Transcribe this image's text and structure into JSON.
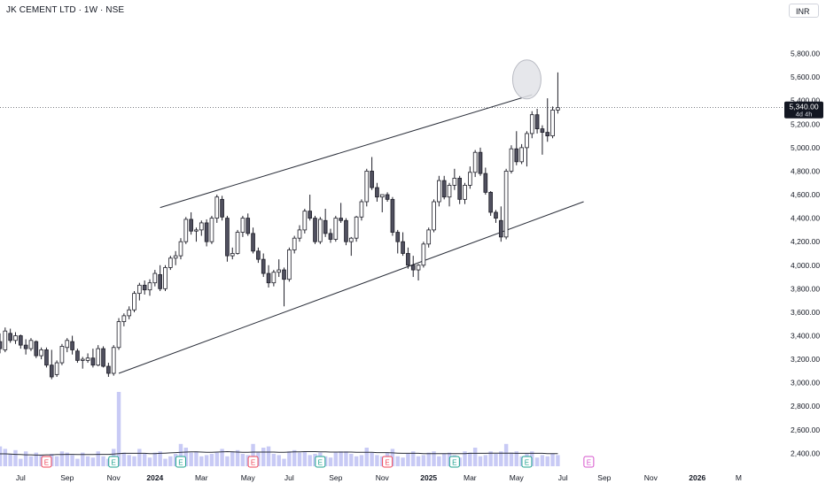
{
  "header": {
    "title": "JK CEMENT LTD · 1W · NSE",
    "currency": "INR"
  },
  "price_tag": {
    "price": "5,340.00",
    "countdown": "4d 4h"
  },
  "colors": {
    "bull_body": "#ffffff",
    "bear_body": "#50505f",
    "candle_outline": "#1e1e28",
    "volume": "#c8caf5",
    "volume_ma": "#2a2e39",
    "channel": "#2a2e39",
    "circle_fill": "#e2e3e8",
    "earnings_red": "#f0465a",
    "earnings_green": "#1fa38f",
    "earnings_magenta": "#d654cc",
    "axis_text": "#131722"
  },
  "chart_data": {
    "type": "candlestick",
    "title": "JK CEMENT LTD · 1W · NSE",
    "currency": "INR",
    "ylim": [
      2320,
      6000
    ],
    "y_ticks": [
      2400,
      2600,
      2800,
      3000,
      3200,
      3400,
      3600,
      3800,
      4000,
      4200,
      4400,
      4600,
      4800,
      5000,
      5200,
      5400,
      5600,
      5800
    ],
    "y_tick_labels": [
      "2,400.00",
      "2,600.00",
      "2,800.00",
      "3,000.00",
      "3,200.00",
      "3,400.00",
      "3,600.00",
      "3,800.00",
      "4,000.00",
      "4,200.00",
      "4,400.00",
      "4,600.00",
      "4,800.00",
      "5,000.00",
      "5,200.00",
      "5,400.00",
      "5,600.00",
      "5,800.00"
    ],
    "x_start": "2023-06-05",
    "x_end": "2026-04-27",
    "x_ticks": [
      {
        "date": "2023-07-03",
        "label": "Jul"
      },
      {
        "date": "2023-09-04",
        "label": "Sep"
      },
      {
        "date": "2023-11-06",
        "label": "Nov"
      },
      {
        "date": "2024-01-01",
        "label": "2024"
      },
      {
        "date": "2024-03-04",
        "label": "Mar"
      },
      {
        "date": "2024-05-06",
        "label": "May"
      },
      {
        "date": "2024-07-01",
        "label": "Jul"
      },
      {
        "date": "2024-09-02",
        "label": "Sep"
      },
      {
        "date": "2024-11-04",
        "label": "Nov"
      },
      {
        "date": "2025-01-06",
        "label": "2025"
      },
      {
        "date": "2025-03-03",
        "label": "Mar"
      },
      {
        "date": "2025-05-05",
        "label": "May"
      },
      {
        "date": "2025-07-07",
        "label": "Jul"
      },
      {
        "date": "2025-09-01",
        "label": "Sep"
      },
      {
        "date": "2025-11-03",
        "label": "Nov"
      },
      {
        "date": "2026-01-05",
        "label": "2026"
      },
      {
        "date": "2026-03-02",
        "label": "M"
      }
    ],
    "candles": [
      [
        3350,
        3420,
        3250,
        3290
      ],
      [
        3280,
        3470,
        3260,
        3440
      ],
      [
        3420,
        3460,
        3340,
        3360
      ],
      [
        3360,
        3430,
        3330,
        3400
      ],
      [
        3400,
        3410,
        3290,
        3320
      ],
      [
        3320,
        3370,
        3240,
        3290
      ],
      [
        3290,
        3380,
        3270,
        3360
      ],
      [
        3350,
        3360,
        3210,
        3230
      ],
      [
        3230,
        3300,
        3200,
        3280
      ],
      [
        3280,
        3300,
        3130,
        3150
      ],
      [
        3150,
        3280,
        3030,
        3050
      ],
      [
        3070,
        3190,
        3050,
        3170
      ],
      [
        3170,
        3330,
        3150,
        3310
      ],
      [
        3300,
        3380,
        3260,
        3360
      ],
      [
        3350,
        3400,
        3240,
        3280
      ],
      [
        3270,
        3290,
        3170,
        3190
      ],
      [
        3190,
        3220,
        3120,
        3200
      ],
      [
        3190,
        3250,
        3170,
        3210
      ],
      [
        3210,
        3290,
        3130,
        3150
      ],
      [
        3150,
        3320,
        3140,
        3290
      ],
      [
        3290,
        3310,
        3130,
        3140
      ],
      [
        3140,
        3170,
        3050,
        3080
      ],
      [
        3080,
        3320,
        3060,
        3300
      ],
      [
        3300,
        3550,
        3280,
        3520
      ],
      [
        3520,
        3590,
        3480,
        3570
      ],
      [
        3570,
        3650,
        3540,
        3620
      ],
      [
        3620,
        3780,
        3600,
        3760
      ],
      [
        3760,
        3850,
        3700,
        3830
      ],
      [
        3830,
        3870,
        3750,
        3790
      ],
      [
        3790,
        3880,
        3740,
        3850
      ],
      [
        3850,
        3960,
        3820,
        3930
      ],
      [
        3920,
        4000,
        3780,
        3800
      ],
      [
        3800,
        4000,
        3780,
        3980
      ],
      [
        3980,
        4080,
        3960,
        4060
      ],
      [
        4060,
        4120,
        4000,
        4080
      ],
      [
        4080,
        4230,
        4050,
        4200
      ],
      [
        4200,
        4410,
        4180,
        4390
      ],
      [
        4390,
        4450,
        4260,
        4290
      ],
      [
        4290,
        4320,
        4200,
        4300
      ],
      [
        4300,
        4380,
        4250,
        4360
      ],
      [
        4360,
        4390,
        4160,
        4200
      ],
      [
        4200,
        4420,
        4180,
        4400
      ],
      [
        4400,
        4600,
        4360,
        4580
      ],
      [
        4560,
        4590,
        4380,
        4410
      ],
      [
        4400,
        4420,
        4030,
        4080
      ],
      [
        4080,
        4150,
        4050,
        4100
      ],
      [
        4100,
        4300,
        4090,
        4280
      ],
      [
        4280,
        4420,
        4240,
        4400
      ],
      [
        4400,
        4440,
        4250,
        4270
      ],
      [
        4270,
        4320,
        4100,
        4120
      ],
      [
        4120,
        4150,
        4020,
        4050
      ],
      [
        4050,
        4100,
        3900,
        3930
      ],
      [
        3930,
        4000,
        3810,
        3850
      ],
      [
        3850,
        3960,
        3820,
        3940
      ],
      [
        3940,
        4050,
        3900,
        3960
      ],
      [
        3960,
        3980,
        3650,
        3880
      ],
      [
        3880,
        4150,
        3860,
        4130
      ],
      [
        4130,
        4250,
        4100,
        4230
      ],
      [
        4230,
        4340,
        4200,
        4300
      ],
      [
        4300,
        4480,
        4270,
        4460
      ],
      [
        4460,
        4600,
        4380,
        4400
      ],
      [
        4400,
        4420,
        4180,
        4200
      ],
      [
        4200,
        4410,
        4180,
        4390
      ],
      [
        4380,
        4480,
        4240,
        4270
      ],
      [
        4270,
        4310,
        4190,
        4220
      ],
      [
        4220,
        4420,
        4200,
        4400
      ],
      [
        4400,
        4530,
        4360,
        4380
      ],
      [
        4380,
        4400,
        4170,
        4200
      ],
      [
        4200,
        4240,
        4080,
        4230
      ],
      [
        4230,
        4420,
        4200,
        4410
      ],
      [
        4410,
        4560,
        4380,
        4540
      ],
      [
        4540,
        4820,
        4500,
        4800
      ],
      [
        4800,
        4920,
        4640,
        4660
      ],
      [
        4660,
        4700,
        4540,
        4580
      ],
      [
        4580,
        4600,
        4450,
        4600
      ],
      [
        4600,
        4620,
        4540,
        4560
      ],
      [
        4560,
        4580,
        4250,
        4280
      ],
      [
        4280,
        4300,
        4100,
        4200
      ],
      [
        4200,
        4280,
        4080,
        4100
      ],
      [
        4100,
        4150,
        3970,
        4000
      ],
      [
        4000,
        4080,
        3900,
        3960
      ],
      [
        3960,
        4010,
        3870,
        4000
      ],
      [
        4000,
        4200,
        3980,
        4180
      ],
      [
        4180,
        4320,
        4150,
        4300
      ],
      [
        4300,
        4560,
        4280,
        4540
      ],
      [
        4540,
        4760,
        4500,
        4720
      ],
      [
        4720,
        4760,
        4560,
        4580
      ],
      [
        4580,
        4700,
        4500,
        4680
      ],
      [
        4680,
        4820,
        4640,
        4740
      ],
      [
        4740,
        4760,
        4520,
        4560
      ],
      [
        4560,
        4700,
        4520,
        4680
      ],
      [
        4680,
        4840,
        4650,
        4790
      ],
      [
        4790,
        4980,
        4750,
        4960
      ],
      [
        4960,
        5000,
        4760,
        4780
      ],
      [
        4780,
        4830,
        4600,
        4620
      ],
      [
        4620,
        4630,
        4420,
        4450
      ],
      [
        4450,
        4470,
        4360,
        4400
      ],
      [
        4380,
        4500,
        4200,
        4240
      ],
      [
        4240,
        4820,
        4220,
        4800
      ],
      [
        4800,
        5020,
        4780,
        4990
      ],
      [
        4990,
        5140,
        4850,
        4880
      ],
      [
        4880,
        5030,
        4860,
        5000
      ],
      [
        5000,
        5140,
        4840,
        5120
      ],
      [
        5120,
        5310,
        5080,
        5280
      ],
      [
        5280,
        5330,
        5120,
        5160
      ],
      [
        5160,
        5190,
        4940,
        5130
      ],
      [
        5130,
        5420,
        5050,
        5100
      ],
      [
        5100,
        5350,
        5080,
        5320
      ],
      [
        5320,
        5640,
        5290,
        5340
      ]
    ],
    "volumes": [
      80,
      70,
      50,
      65,
      30,
      60,
      40,
      55,
      45,
      35,
      50,
      40,
      60,
      55,
      45,
      30,
      55,
      40,
      35,
      60,
      40,
      30,
      70,
      300,
      55,
      45,
      40,
      70,
      50,
      35,
      55,
      60,
      30,
      40,
      50,
      90,
      75,
      55,
      60,
      40,
      45,
      50,
      55,
      70,
      40,
      60,
      65,
      50,
      45,
      90,
      55,
      75,
      80,
      50,
      45,
      30,
      60,
      65,
      55,
      60,
      45,
      50,
      55,
      40,
      35,
      55,
      60,
      60,
      50,
      40,
      45,
      75,
      55,
      45,
      40,
      55,
      70,
      40,
      35,
      50,
      60,
      40,
      45,
      55,
      60,
      40,
      50,
      55,
      45,
      35,
      60,
      55,
      75,
      40,
      45,
      60,
      50,
      60,
      90,
      55,
      60,
      40,
      50,
      60,
      35,
      45,
      40,
      50,
      45
    ],
    "volume_ma": [
      50,
      50,
      49,
      48,
      47,
      46,
      46,
      45,
      45,
      46,
      46,
      47,
      47,
      48,
      48,
      47,
      47,
      47,
      47,
      48,
      48,
      48,
      49,
      51,
      52,
      52,
      52,
      52,
      52,
      51,
      51,
      52,
      53,
      54,
      55,
      56,
      57,
      58,
      58,
      57,
      56,
      56,
      57,
      58,
      59,
      58,
      57,
      56,
      56,
      57,
      57,
      57,
      57,
      57,
      56,
      56,
      57,
      58,
      58,
      59,
      59,
      59,
      58,
      58,
      57,
      57,
      57,
      57,
      57,
      56,
      56,
      56,
      56,
      55,
      55,
      55,
      54,
      53,
      52,
      52,
      52,
      52,
      51,
      51,
      51,
      51,
      51,
      51,
      51,
      51,
      51,
      52,
      52,
      52,
      52,
      53,
      53,
      53,
      53,
      53,
      52,
      52,
      52,
      52,
      52,
      52,
      51,
      51,
      51
    ],
    "channel_upper": [
      {
        "date": "2024-01-08",
        "price": 4490
      },
      {
        "date": "2025-05-26",
        "price": 5450
      }
    ],
    "channel_lower": [
      {
        "date": "2023-11-13",
        "price": 3080
      },
      {
        "date": "2025-08-04",
        "price": 4540
      }
    ],
    "earnings_markers": [
      {
        "date": "2023-08-07",
        "type": "E",
        "color": "red"
      },
      {
        "date": "2023-11-06",
        "type": "E",
        "color": "green"
      },
      {
        "date": "2024-02-05",
        "type": "E",
        "color": "green"
      },
      {
        "date": "2024-05-13",
        "type": "E",
        "color": "red"
      },
      {
        "date": "2024-08-12",
        "type": "E",
        "color": "green"
      },
      {
        "date": "2024-11-11",
        "type": "E",
        "color": "red"
      },
      {
        "date": "2025-02-10",
        "type": "E",
        "color": "green"
      },
      {
        "date": "2025-05-19",
        "type": "E",
        "color": "green"
      },
      {
        "date": "2025-08-11",
        "type": "E",
        "color": "magenta"
      }
    ],
    "highlight_circle": {
      "date": "2025-05-19",
      "price": 5580
    },
    "last_price": 5340
  }
}
